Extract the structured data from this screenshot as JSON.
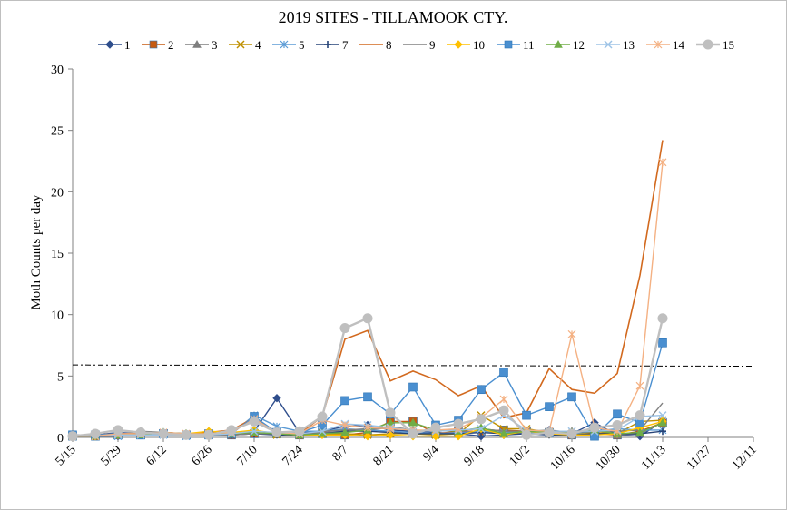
{
  "chart_data": {
    "type": "line",
    "title": "2019 SITES - TILLAMOOK CTY.",
    "xlabel": "",
    "ylabel": "Moth Counts  per day",
    "ylim": [
      0,
      30
    ],
    "yticks": [
      "0",
      "5",
      "10",
      "15",
      "20",
      "25",
      "30"
    ],
    "xticks": [
      "5/15",
      "5/29",
      "6/12",
      "6/26",
      "7/10",
      "7/24",
      "8/7",
      "8/21",
      "9/4",
      "9/18",
      "10/2",
      "10/16",
      "10/30",
      "11/13",
      "11/27",
      "12/11"
    ],
    "x": [
      "5/15",
      "5/22",
      "5/29",
      "6/5",
      "6/12",
      "6/19",
      "6/26",
      "7/3",
      "7/10",
      "7/17",
      "7/24",
      "7/31",
      "8/7",
      "8/14",
      "8/21",
      "8/28",
      "9/4",
      "9/11",
      "9/18",
      "9/25",
      "10/2",
      "10/9",
      "10/16",
      "10/23",
      "10/30",
      "11/6",
      "11/13"
    ],
    "threshold": 5.9,
    "grid": false,
    "legend_position": "top",
    "series": [
      {
        "name": "1",
        "color": "#2f4e8c",
        "marker": "diamond",
        "values": [
          0.1,
          0.2,
          0.4,
          0.3,
          0.4,
          0.3,
          0.2,
          0.3,
          0.5,
          3.2,
          0.4,
          0.5,
          0.9,
          1.0,
          0.6,
          0.5,
          0.4,
          0.3,
          0.1,
          0.2,
          0.3,
          0.6,
          0.3,
          1.2,
          0.2,
          0.1,
          1.3
        ]
      },
      {
        "name": "2",
        "color": "#c55a11",
        "marker": "square",
        "values": [
          0.1,
          0.1,
          0.2,
          0.2,
          0.3,
          0.2,
          0.3,
          0.2,
          0.3,
          0.3,
          0.2,
          0.3,
          0.2,
          0.4,
          1.3,
          1.3,
          0.3,
          0.5,
          0.5,
          0.6,
          0.5,
          0.4,
          0.2,
          0.3,
          0.2,
          0.5,
          1.2
        ]
      },
      {
        "name": "3",
        "color": "#7f7f7f",
        "marker": "triangle",
        "values": [
          0.1,
          0.1,
          0.2,
          0.5,
          0.4,
          0.3,
          0.3,
          0.3,
          0.4,
          0.2,
          0.2,
          0.4,
          0.5,
          0.6,
          0.8,
          0.6,
          0.5,
          0.6,
          0.7,
          0.5,
          0.4,
          0.4,
          0.5,
          0.6,
          0.2,
          0.3,
          1.2
        ]
      },
      {
        "name": "4",
        "color": "#bf9000",
        "marker": "x",
        "values": [
          0.1,
          0.1,
          0.2,
          0.2,
          0.3,
          0.2,
          0.2,
          0.3,
          0.4,
          0.2,
          0.2,
          0.3,
          0.3,
          0.2,
          0.3,
          0.3,
          0.2,
          0.3,
          1.8,
          0.7,
          0.7,
          0.4,
          0.3,
          0.4,
          0.3,
          1.3,
          1.4
        ]
      },
      {
        "name": "5",
        "color": "#5b9bd5",
        "marker": "star",
        "values": [
          0.1,
          0.1,
          0.1,
          0.2,
          0.2,
          0.1,
          0.3,
          0.3,
          1.8,
          0.9,
          0.5,
          0.5,
          0.7,
          0.6,
          0.5,
          0.4,
          0.3,
          0.4,
          0.5,
          0.4,
          0.4,
          0.3,
          0.3,
          0.5,
          0.7,
          0.6,
          0.6
        ]
      },
      {
        "name": "7",
        "color": "#264478",
        "marker": "plus",
        "values": [
          0.1,
          0.1,
          0.1,
          0.2,
          0.2,
          0.2,
          0.2,
          0.2,
          0.3,
          0.2,
          0.2,
          0.3,
          0.5,
          0.5,
          0.4,
          0.3,
          0.3,
          0.3,
          0.4,
          0.3,
          0.3,
          0.2,
          0.2,
          0.3,
          0.3,
          0.3,
          0.5
        ]
      },
      {
        "name": "8",
        "color": "#d2691e",
        "marker": "none",
        "values": [
          0.2,
          0.2,
          0.3,
          0.3,
          0.4,
          0.3,
          0.4,
          0.6,
          1.6,
          0.4,
          0.3,
          1.7,
          8.0,
          8.7,
          4.6,
          5.4,
          4.7,
          3.4,
          4.2,
          1.6,
          2.0,
          5.6,
          3.9,
          3.6,
          5.2,
          13.2,
          24.2
        ]
      },
      {
        "name": "9",
        "color": "#808080",
        "marker": "none",
        "values": [
          0.1,
          0.1,
          0.2,
          0.2,
          0.2,
          0.2,
          0.2,
          0.2,
          0.3,
          0.3,
          0.2,
          0.5,
          0.6,
          0.7,
          0.9,
          0.6,
          0.5,
          0.6,
          0.7,
          0.5,
          0.5,
          0.6,
          0.4,
          0.5,
          0.5,
          0.6,
          2.8
        ]
      },
      {
        "name": "10",
        "color": "#ffc000",
        "marker": "diamond",
        "values": [
          0.1,
          0.1,
          0.2,
          0.2,
          0.3,
          0.3,
          0.5,
          0.4,
          0.6,
          0.3,
          0.2,
          0.2,
          0.2,
          0.1,
          0.2,
          0.1,
          0.1,
          0.1,
          0.7,
          0.2,
          0.5,
          0.3,
          0.2,
          0.2,
          0.3,
          0.8,
          1.3
        ]
      },
      {
        "name": "11",
        "color": "#4a8fd0",
        "marker": "square",
        "values": [
          0.2,
          0.2,
          0.3,
          0.2,
          0.3,
          0.2,
          0.2,
          0.3,
          1.7,
          0.4,
          0.4,
          1.0,
          3.0,
          3.3,
          1.9,
          4.1,
          1.0,
          1.4,
          3.9,
          5.3,
          1.8,
          2.5,
          3.3,
          0.1,
          1.9,
          1.2,
          7.7
        ]
      },
      {
        "name": "12",
        "color": "#70ad47",
        "marker": "triangle",
        "values": [
          0.1,
          0.1,
          0.2,
          0.2,
          0.4,
          0.3,
          0.3,
          0.3,
          0.4,
          0.3,
          0.2,
          0.3,
          0.4,
          0.6,
          1.2,
          1.2,
          0.6,
          0.5,
          0.8,
          0.3,
          0.5,
          0.4,
          0.4,
          0.6,
          0.3,
          0.4,
          1.2
        ]
      },
      {
        "name": "13",
        "color": "#9dc3e6",
        "marker": "x",
        "values": [
          0.1,
          0.1,
          0.2,
          0.2,
          0.2,
          0.2,
          0.2,
          0.3,
          0.5,
          0.4,
          0.3,
          0.5,
          1.1,
          1.0,
          0.8,
          0.6,
          0.5,
          0.6,
          0.7,
          1.8,
          0.6,
          0.5,
          0.5,
          0.5,
          0.6,
          1.7,
          1.8
        ]
      },
      {
        "name": "14",
        "color": "#f4b183",
        "marker": "star",
        "values": [
          0.1,
          0.1,
          0.3,
          0.3,
          0.4,
          0.3,
          0.3,
          0.4,
          1.5,
          0.4,
          0.3,
          1.4,
          1.0,
          0.8,
          0.7,
          0.6,
          0.6,
          0.7,
          1.6,
          3.1,
          0.6,
          0.5,
          8.4,
          0.8,
          0.5,
          4.2,
          22.4
        ]
      },
      {
        "name": "15",
        "color": "#bfbfbf",
        "marker": "circle",
        "values": [
          0.1,
          0.3,
          0.6,
          0.4,
          0.3,
          0.2,
          0.2,
          0.6,
          1.3,
          0.4,
          0.5,
          1.7,
          8.9,
          9.7,
          2.0,
          0.3,
          0.8,
          1.1,
          1.5,
          2.2,
          0.2,
          0.4,
          0.3,
          0.8,
          1.0,
          1.8,
          9.7
        ]
      }
    ]
  }
}
